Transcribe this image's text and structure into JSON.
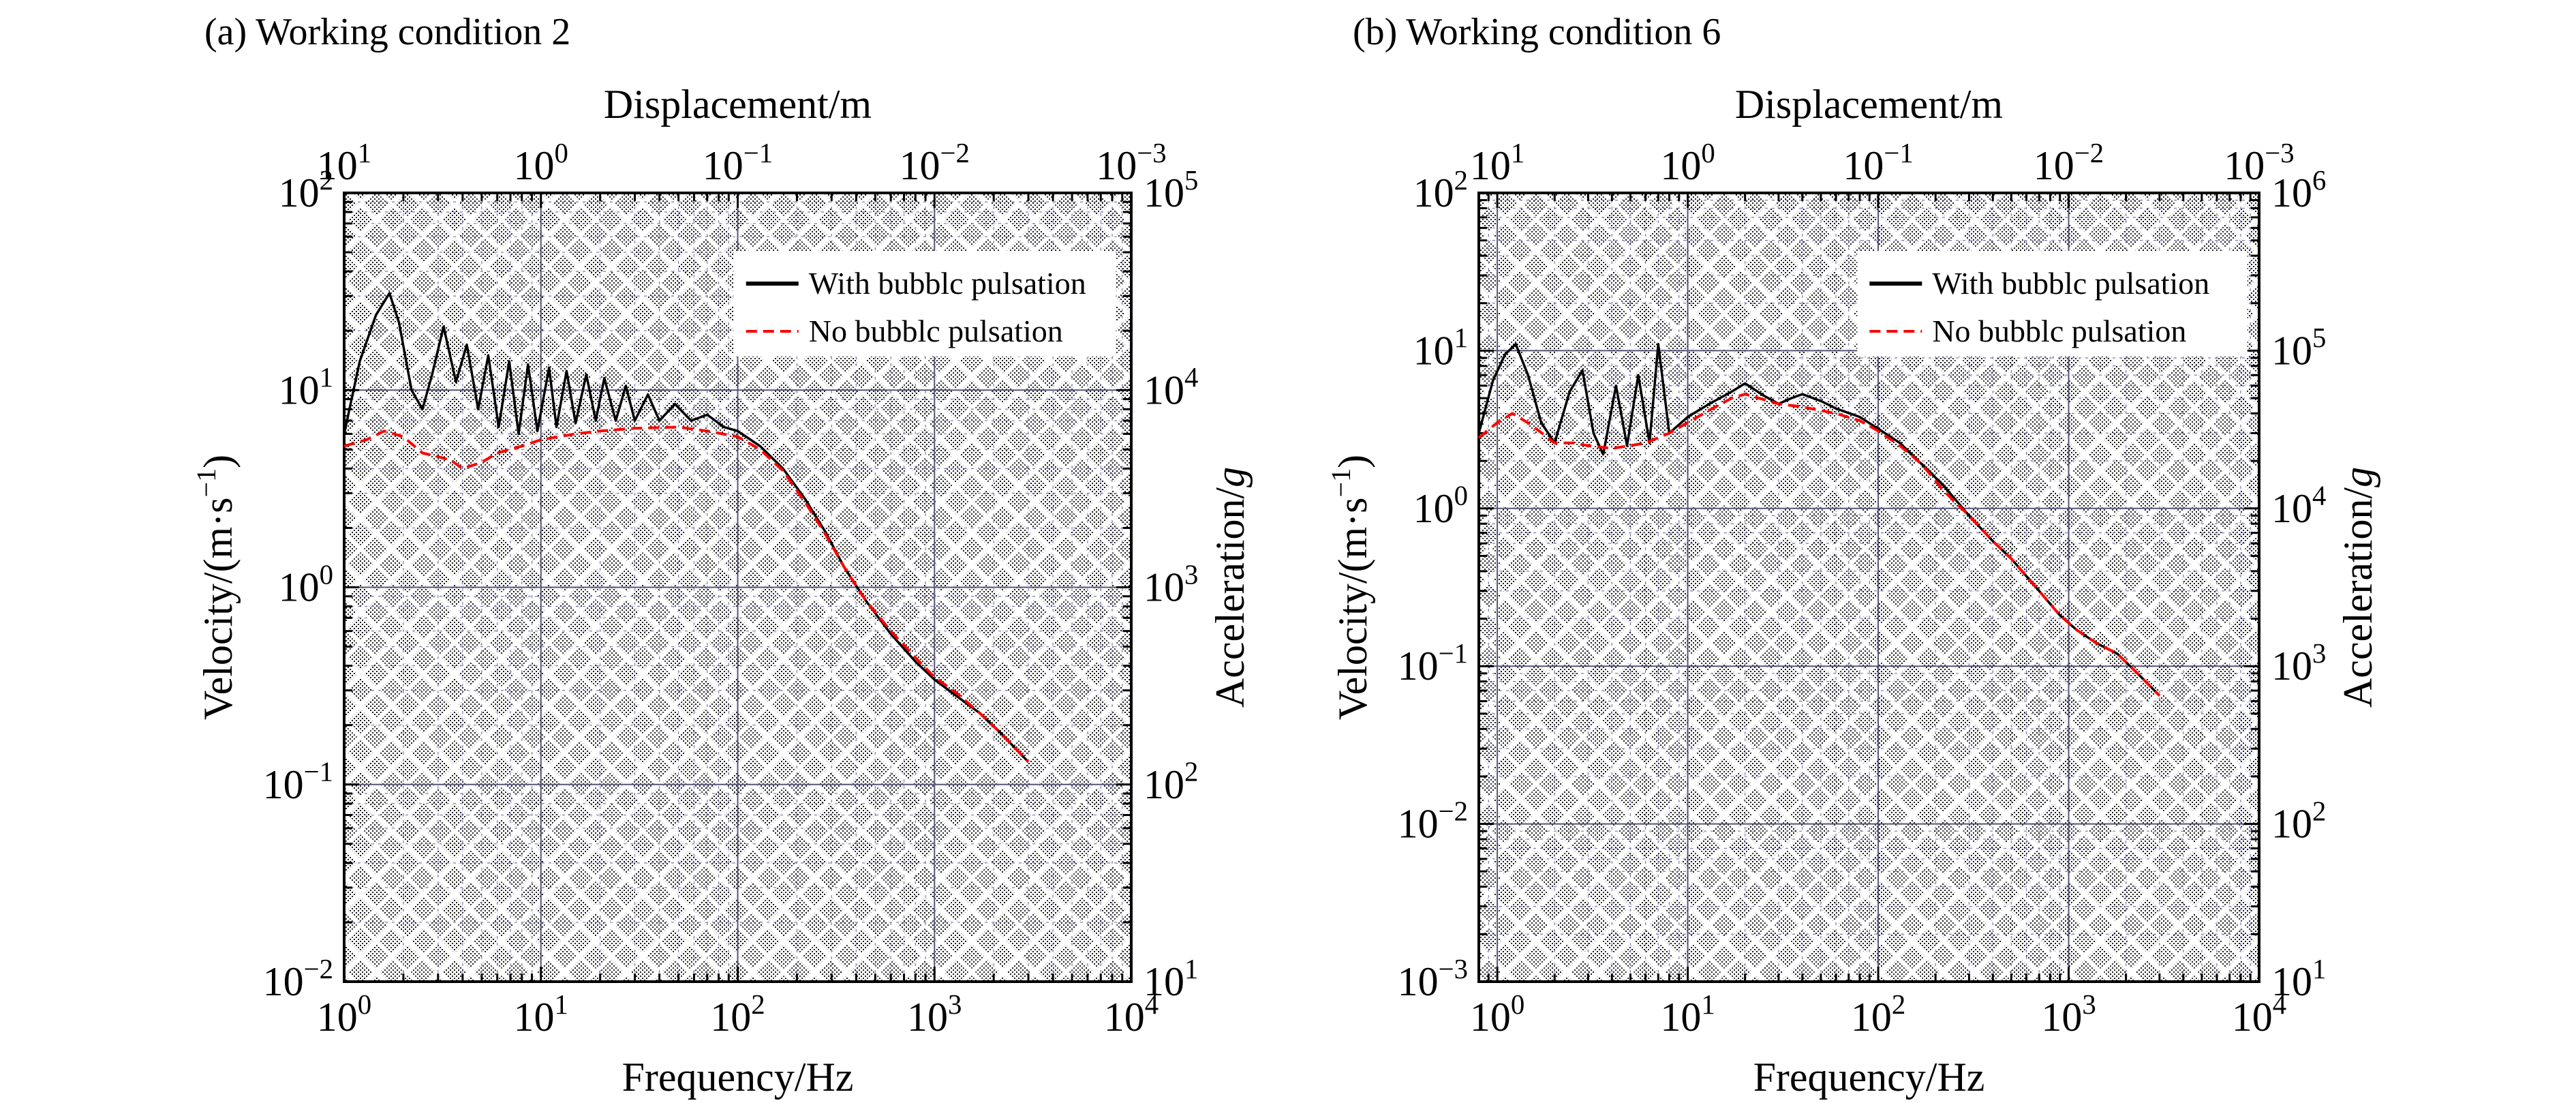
{
  "chart_data": [
    {
      "type": "line",
      "panel_label": "(a) Working condition 2",
      "xlabel": "Frequency/Hz",
      "x2label": "Displacement/m",
      "ylabel": "Velocity/(m·s",
      "ylabel_sup": "−1",
      "ylabel_close": ")",
      "y2label_pre": "Acceleration/",
      "y2label_ital": "g",
      "x_scale": "log",
      "y_scale": "log",
      "xlim": [
        1,
        10000
      ],
      "ylim": [
        0.01,
        100
      ],
      "x_ticks": [
        {
          "b": "10",
          "e": "0"
        },
        {
          "b": "10",
          "e": "1"
        },
        {
          "b": "10",
          "e": "2"
        },
        {
          "b": "10",
          "e": "3"
        },
        {
          "b": "10",
          "e": "4"
        }
      ],
      "y_ticks": [
        {
          "b": "10",
          "e": "−2"
        },
        {
          "b": "10",
          "e": "−1"
        },
        {
          "b": "10",
          "e": "0"
        },
        {
          "b": "10",
          "e": "1"
        },
        {
          "b": "10",
          "e": "2"
        }
      ],
      "x2_ticks": [
        {
          "b": "10",
          "e": "1"
        },
        {
          "b": "10",
          "e": "0"
        },
        {
          "b": "10",
          "e": "−1"
        },
        {
          "b": "10",
          "e": "−2"
        },
        {
          "b": "10",
          "e": "−3"
        }
      ],
      "y2_ticks": [
        {
          "b": "10",
          "e": "1"
        },
        {
          "b": "10",
          "e": "2"
        },
        {
          "b": "10",
          "e": "3"
        },
        {
          "b": "10",
          "e": "4"
        },
        {
          "b": "10",
          "e": "5"
        }
      ],
      "legend_position": "top-right",
      "grid": true,
      "series": [
        {
          "name": "With bubblc pulsation",
          "color": "#000000",
          "dash": "solid",
          "points": [
            [
              1.0,
              6.0
            ],
            [
              1.2,
              14.0
            ],
            [
              1.45,
              24.0
            ],
            [
              1.7,
              31.0
            ],
            [
              1.9,
              22.0
            ],
            [
              2.2,
              10.0
            ],
            [
              2.5,
              8.0
            ],
            [
              2.8,
              12.0
            ],
            [
              3.2,
              21.0
            ],
            [
              3.7,
              11.0
            ],
            [
              4.2,
              17.0
            ],
            [
              4.8,
              8.0
            ],
            [
              5.4,
              15.0
            ],
            [
              6.1,
              6.5
            ],
            [
              6.9,
              14.0
            ],
            [
              7.7,
              6.0
            ],
            [
              8.6,
              13.5
            ],
            [
              9.6,
              6.2
            ],
            [
              11,
              13.0
            ],
            [
              12,
              6.5
            ],
            [
              13.5,
              12.5
            ],
            [
              15,
              6.8
            ],
            [
              17,
              12.0
            ],
            [
              19,
              7.0
            ],
            [
              21,
              11.5
            ],
            [
              24,
              7.0
            ],
            [
              27,
              10.5
            ],
            [
              30,
              7.0
            ],
            [
              35,
              9.5
            ],
            [
              40,
              7.0
            ],
            [
              48,
              8.5
            ],
            [
              58,
              7.0
            ],
            [
              70,
              7.5
            ],
            [
              85,
              6.5
            ],
            [
              100,
              6.2
            ],
            [
              130,
              5.2
            ],
            [
              170,
              4.0
            ],
            [
              220,
              2.8
            ],
            [
              280,
              1.9
            ],
            [
              350,
              1.25
            ],
            [
              450,
              0.85
            ],
            [
              600,
              0.58
            ],
            [
              800,
              0.42
            ],
            [
              1000,
              0.34
            ],
            [
              1300,
              0.28
            ],
            [
              1700,
              0.23
            ],
            [
              2200,
              0.18
            ],
            [
              3000,
              0.13
            ]
          ]
        },
        {
          "name": "No bubblc pulsation",
          "color": "#ff0000",
          "dash": "dashed",
          "points": [
            [
              1.0,
              5.2
            ],
            [
              1.3,
              5.6
            ],
            [
              1.6,
              6.2
            ],
            [
              2.0,
              5.8
            ],
            [
              2.5,
              4.8
            ],
            [
              3.0,
              4.6
            ],
            [
              3.5,
              4.4
            ],
            [
              4.0,
              4.0
            ],
            [
              5.0,
              4.3
            ],
            [
              6.0,
              4.8
            ],
            [
              8.0,
              5.2
            ],
            [
              10,
              5.6
            ],
            [
              15,
              6.0
            ],
            [
              20,
              6.2
            ],
            [
              30,
              6.4
            ],
            [
              50,
              6.5
            ],
            [
              70,
              6.2
            ],
            [
              100,
              5.8
            ],
            [
              130,
              5.0
            ],
            [
              170,
              3.9
            ],
            [
              220,
              2.7
            ],
            [
              280,
              1.85
            ],
            [
              350,
              1.25
            ],
            [
              450,
              0.85
            ],
            [
              600,
              0.6
            ],
            [
              800,
              0.44
            ],
            [
              1000,
              0.35
            ],
            [
              1300,
              0.29
            ],
            [
              1700,
              0.23
            ],
            [
              2200,
              0.18
            ],
            [
              3000,
              0.13
            ]
          ]
        }
      ]
    },
    {
      "type": "line",
      "panel_label": "(b) Working condition 6",
      "xlabel": "Frequency/Hz",
      "x2label": "Displacement/m",
      "ylabel": "Velocity/(m·s",
      "ylabel_sup": "−1",
      "ylabel_close": ")",
      "y2label_pre": "Acceleration/",
      "y2label_ital": "g",
      "x_scale": "log",
      "y_scale": "log",
      "xlim": [
        0.8,
        10000
      ],
      "ylim": [
        0.001,
        100
      ],
      "x_ticks": [
        {
          "b": "10",
          "e": "0"
        },
        {
          "b": "10",
          "e": "1"
        },
        {
          "b": "10",
          "e": "2"
        },
        {
          "b": "10",
          "e": "3"
        },
        {
          "b": "10",
          "e": "4"
        }
      ],
      "y_ticks": [
        {
          "b": "10",
          "e": "−3"
        },
        {
          "b": "10",
          "e": "−2"
        },
        {
          "b": "10",
          "e": "−1"
        },
        {
          "b": "10",
          "e": "0"
        },
        {
          "b": "10",
          "e": "1"
        },
        {
          "b": "10",
          "e": "2"
        }
      ],
      "x2_ticks": [
        {
          "b": "10",
          "e": "1"
        },
        {
          "b": "10",
          "e": "0"
        },
        {
          "b": "10",
          "e": "−1"
        },
        {
          "b": "10",
          "e": "−2"
        },
        {
          "b": "10",
          "e": "−3"
        }
      ],
      "y2_ticks": [
        {
          "b": "10",
          "e": "1"
        },
        {
          "b": "10",
          "e": "2"
        },
        {
          "b": "10",
          "e": "3"
        },
        {
          "b": "10",
          "e": "4"
        },
        {
          "b": "10",
          "e": "5"
        },
        {
          "b": "10",
          "e": "6"
        }
      ],
      "legend_position": "top-right",
      "grid": true,
      "series": [
        {
          "name": "With bubblc pulsation",
          "color": "#000000",
          "dash": "solid",
          "points": [
            [
              0.8,
              3.0
            ],
            [
              0.95,
              6.5
            ],
            [
              1.1,
              9.5
            ],
            [
              1.25,
              11.0
            ],
            [
              1.45,
              7.0
            ],
            [
              1.7,
              3.5
            ],
            [
              2.0,
              2.6
            ],
            [
              2.4,
              5.5
            ],
            [
              2.8,
              7.5
            ],
            [
              3.2,
              3.0
            ],
            [
              3.6,
              2.2
            ],
            [
              4.2,
              6.0
            ],
            [
              4.8,
              2.5
            ],
            [
              5.5,
              7.0
            ],
            [
              6.3,
              2.6
            ],
            [
              7.0,
              11.0
            ],
            [
              8.0,
              3.0
            ],
            [
              10,
              3.8
            ],
            [
              13,
              4.6
            ],
            [
              17,
              5.5
            ],
            [
              20,
              6.2
            ],
            [
              25,
              5.2
            ],
            [
              30,
              4.6
            ],
            [
              35,
              5.0
            ],
            [
              40,
              5.3
            ],
            [
              50,
              4.8
            ],
            [
              60,
              4.3
            ],
            [
              80,
              3.8
            ],
            [
              100,
              3.2
            ],
            [
              130,
              2.6
            ],
            [
              170,
              1.9
            ],
            [
              220,
              1.4
            ],
            [
              300,
              0.9
            ],
            [
              400,
              0.62
            ],
            [
              500,
              0.48
            ],
            [
              700,
              0.3
            ],
            [
              900,
              0.21
            ],
            [
              1100,
              0.17
            ],
            [
              1400,
              0.14
            ],
            [
              1800,
              0.12
            ],
            [
              2300,
              0.09
            ],
            [
              3000,
              0.065
            ]
          ]
        },
        {
          "name": "No bubblc pulsation",
          "color": "#ff0000",
          "dash": "dashed",
          "points": [
            [
              0.8,
              2.8
            ],
            [
              1.0,
              3.5
            ],
            [
              1.2,
              4.0
            ],
            [
              1.5,
              3.4
            ],
            [
              2.0,
              2.6
            ],
            [
              2.5,
              2.6
            ],
            [
              3.0,
              2.5
            ],
            [
              4.0,
              2.4
            ],
            [
              5.0,
              2.5
            ],
            [
              6.0,
              2.6
            ],
            [
              8.0,
              3.0
            ],
            [
              10,
              3.5
            ],
            [
              13,
              4.2
            ],
            [
              17,
              5.0
            ],
            [
              20,
              5.3
            ],
            [
              30,
              4.6
            ],
            [
              40,
              4.4
            ],
            [
              60,
              4.0
            ],
            [
              80,
              3.6
            ],
            [
              100,
              3.1
            ],
            [
              130,
              2.5
            ],
            [
              170,
              1.9
            ],
            [
              220,
              1.3
            ],
            [
              300,
              0.9
            ],
            [
              400,
              0.62
            ],
            [
              500,
              0.48
            ],
            [
              700,
              0.3
            ],
            [
              900,
              0.21
            ],
            [
              1100,
              0.17
            ],
            [
              1400,
              0.14
            ],
            [
              1800,
              0.12
            ],
            [
              2300,
              0.09
            ],
            [
              3000,
              0.065
            ]
          ]
        }
      ]
    }
  ]
}
